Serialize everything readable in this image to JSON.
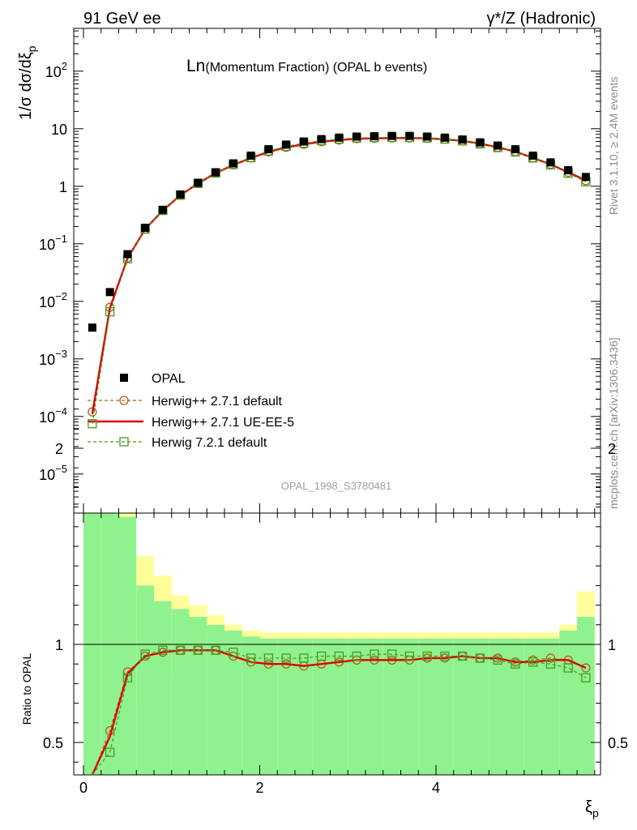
{
  "header": {
    "left": "91 GeV ee",
    "right": "γ*/Z (Hadronic)"
  },
  "side": {
    "rivet": "Rivet 3.1.10, ≥ 2.4M events",
    "mcplots": "mcplots.cern.ch [arXiv:1306.3436]"
  },
  "chart_data": [
    {
      "type": "scatter",
      "title": "Ln(Momentum Fraction) (OPAL b events)",
      "title_main": "Ln",
      "title_rest": "(Momentum Fraction) (OPAL b events)",
      "ylabel": "1/σ dσ/dξ_p",
      "yscale": "log",
      "ylim": [
        3e-06,
        600
      ],
      "xlim": [
        -0.2,
        5.9
      ],
      "yticks": [
        {
          "v": 1e-05,
          "b": "10",
          "e": "−5"
        },
        {
          "v": 0.0001,
          "b": "10",
          "e": "−4"
        },
        {
          "v": 0.001,
          "b": "10",
          "e": "−3"
        },
        {
          "v": 0.01,
          "b": "10",
          "e": "−2"
        },
        {
          "v": 0.1,
          "b": "10",
          "e": "−1"
        },
        {
          "v": 1,
          "b": "1",
          "e": ""
        },
        {
          "v": 10,
          "b": "10",
          "e": ""
        },
        {
          "v": 100,
          "b": "10",
          "e": "2"
        }
      ],
      "refcode": "OPAL_1998_S3780481",
      "x": [
        0.1,
        0.3,
        0.5,
        0.7,
        0.9,
        1.1,
        1.3,
        1.5,
        1.7,
        1.9,
        2.1,
        2.3,
        2.5,
        2.7,
        2.9,
        3.1,
        3.3,
        3.5,
        3.7,
        3.9,
        4.1,
        4.3,
        4.5,
        4.7,
        4.9,
        5.1,
        5.3,
        5.5,
        5.7
      ],
      "series": [
        {
          "name": "OPAL",
          "marker": "square-filled",
          "color": "#000000",
          "values": [
            0.0035,
            0.0145,
            0.066,
            0.19,
            0.39,
            0.72,
            1.15,
            1.75,
            2.5,
            3.4,
            4.4,
            5.3,
            6.0,
            6.6,
            7.0,
            7.3,
            7.4,
            7.5,
            7.5,
            7.3,
            7.0,
            6.5,
            5.8,
            5.1,
            4.4,
            3.4,
            2.6,
            1.9,
            1.45
          ]
        },
        {
          "name": "Herwig++ 2.7.1 default",
          "marker": "circle-open",
          "color": "#b25f1d",
          "line": "dashed",
          "values": [
            0.00012,
            0.0079,
            0.057,
            0.18,
            0.38,
            0.7,
            1.12,
            1.7,
            2.35,
            3.1,
            3.95,
            4.75,
            5.35,
            5.95,
            6.35,
            6.7,
            6.8,
            6.9,
            6.9,
            6.8,
            6.55,
            6.15,
            5.5,
            4.75,
            4.0,
            3.1,
            2.4,
            1.75,
            1.25
          ]
        },
        {
          "name": "Herwig++ 2.7.1 UE-EE-5",
          "marker": "none",
          "color": "#e00000",
          "line": "solid",
          "values": [
            0.00011,
            0.0077,
            0.056,
            0.18,
            0.38,
            0.7,
            1.12,
            1.7,
            2.35,
            3.1,
            3.95,
            4.75,
            5.35,
            5.95,
            6.35,
            6.7,
            6.8,
            6.9,
            6.9,
            6.8,
            6.55,
            6.15,
            5.5,
            4.75,
            4.0,
            3.1,
            2.4,
            1.75,
            1.27
          ]
        },
        {
          "name": "Herwig 7.2.1 default",
          "marker": "square-open",
          "color": "#4a9a1f",
          "line": "dashed",
          "values": [
            7.5e-05,
            0.0066,
            0.055,
            0.18,
            0.38,
            0.7,
            1.12,
            1.7,
            2.4,
            3.15,
            4.1,
            4.95,
            5.6,
            6.2,
            6.6,
            6.9,
            7.0,
            7.05,
            7.05,
            6.9,
            6.6,
            6.15,
            5.45,
            4.7,
            3.95,
            3.1,
            2.35,
            1.68,
            1.2
          ]
        }
      ],
      "legend_position": "lower-left"
    },
    {
      "type": "line",
      "ylabel": "Ratio to OPAL",
      "xlabel": "ξ_p",
      "ylim": [
        0.35,
        2.35
      ],
      "xlim": [
        -0.2,
        5.9
      ],
      "yticks": [
        0.5,
        1,
        2
      ],
      "xticks": [
        0,
        2,
        4
      ],
      "bins": [
        {
          "lo": 0.0,
          "hi": 0.2,
          "g": [
            0.0,
            1.85
          ],
          "y": [
            0.0,
            2.35
          ]
        },
        {
          "lo": 0.2,
          "hi": 0.4,
          "g": [
            0.0,
            1.8
          ],
          "y": [
            0.0,
            2.3
          ]
        },
        {
          "lo": 0.4,
          "hi": 0.6,
          "g": [
            0.0,
            1.65
          ],
          "y": [
            0.0,
            1.9
          ]
        },
        {
          "lo": 0.6,
          "hi": 0.8,
          "g": [
            0.0,
            1.3
          ],
          "y": [
            0.67,
            1.45
          ]
        },
        {
          "lo": 0.8,
          "hi": 1.0,
          "g": [
            0.0,
            1.22
          ],
          "y": [
            0.8,
            1.35
          ]
        },
        {
          "lo": 1.0,
          "hi": 1.2,
          "g": [
            0.0,
            1.18
          ],
          "y": [
            0.86,
            1.25
          ]
        },
        {
          "lo": 1.2,
          "hi": 1.4,
          "g": [
            0.0,
            1.14
          ],
          "y": [
            0.9,
            1.2
          ]
        },
        {
          "lo": 1.4,
          "hi": 1.6,
          "g": [
            0.0,
            1.1
          ],
          "y": [
            0.91,
            1.15
          ]
        },
        {
          "lo": 1.6,
          "hi": 1.8,
          "g": [
            0.0,
            1.07
          ],
          "y": [
            0.93,
            1.1
          ]
        },
        {
          "lo": 1.8,
          "hi": 2.0,
          "g": [
            0.0,
            1.04
          ],
          "y": [
            0.95,
            1.07
          ]
        },
        {
          "lo": 2.0,
          "hi": 2.2,
          "g": [
            0.0,
            1.03
          ],
          "y": [
            0.96,
            1.06
          ]
        },
        {
          "lo": 2.2,
          "hi": 2.4,
          "g": [
            0.0,
            1.03
          ],
          "y": [
            0.96,
            1.06
          ]
        },
        {
          "lo": 2.4,
          "hi": 2.6,
          "g": [
            0.0,
            1.03
          ],
          "y": [
            0.96,
            1.06
          ]
        },
        {
          "lo": 2.6,
          "hi": 2.8,
          "g": [
            0.0,
            1.03
          ],
          "y": [
            0.96,
            1.06
          ]
        },
        {
          "lo": 2.8,
          "hi": 3.0,
          "g": [
            0.0,
            1.03
          ],
          "y": [
            0.96,
            1.06
          ]
        },
        {
          "lo": 3.0,
          "hi": 3.2,
          "g": [
            0.0,
            1.03
          ],
          "y": [
            0.96,
            1.06
          ]
        },
        {
          "lo": 3.2,
          "hi": 3.4,
          "g": [
            0.0,
            1.03
          ],
          "y": [
            0.96,
            1.06
          ]
        },
        {
          "lo": 3.4,
          "hi": 3.6,
          "g": [
            0.0,
            1.03
          ],
          "y": [
            0.96,
            1.06
          ]
        },
        {
          "lo": 3.6,
          "hi": 3.8,
          "g": [
            0.0,
            1.03
          ],
          "y": [
            0.96,
            1.06
          ]
        },
        {
          "lo": 3.8,
          "hi": 4.0,
          "g": [
            0.0,
            1.03
          ],
          "y": [
            0.96,
            1.06
          ]
        },
        {
          "lo": 4.0,
          "hi": 4.2,
          "g": [
            0.0,
            1.03
          ],
          "y": [
            0.96,
            1.06
          ]
        },
        {
          "lo": 4.2,
          "hi": 4.4,
          "g": [
            0.0,
            1.03
          ],
          "y": [
            0.96,
            1.06
          ]
        },
        {
          "lo": 4.4,
          "hi": 4.6,
          "g": [
            0.0,
            1.03
          ],
          "y": [
            0.96,
            1.06
          ]
        },
        {
          "lo": 4.6,
          "hi": 4.8,
          "g": [
            0.0,
            1.03
          ],
          "y": [
            0.96,
            1.06
          ]
        },
        {
          "lo": 4.8,
          "hi": 5.0,
          "g": [
            0.0,
            1.03
          ],
          "y": [
            0.96,
            1.06
          ]
        },
        {
          "lo": 5.0,
          "hi": 5.2,
          "g": [
            0.0,
            1.03
          ],
          "y": [
            0.96,
            1.06
          ]
        },
        {
          "lo": 5.2,
          "hi": 5.4,
          "g": [
            0.0,
            1.03
          ],
          "y": [
            0.96,
            1.06
          ]
        },
        {
          "lo": 5.4,
          "hi": 5.6,
          "g": [
            0.0,
            1.07
          ],
          "y": [
            0.92,
            1.1
          ]
        },
        {
          "lo": 5.6,
          "hi": 5.8,
          "g": [
            0.0,
            1.14
          ],
          "y": [
            0.8,
            1.27
          ]
        }
      ],
      "band_colors": {
        "inner": "#8ff28f",
        "outer": "#ffff99"
      },
      "x": [
        0.1,
        0.3,
        0.5,
        0.7,
        0.9,
        1.1,
        1.3,
        1.5,
        1.7,
        1.9,
        2.1,
        2.3,
        2.5,
        2.7,
        2.9,
        3.1,
        3.3,
        3.5,
        3.7,
        3.9,
        4.1,
        4.3,
        4.5,
        4.7,
        4.9,
        5.1,
        5.3,
        5.5,
        5.7
      ],
      "series": [
        {
          "name": "Herwig++ 2.7.1 default",
          "marker": "circle-open",
          "color": "#b25f1d",
          "line": "dashed",
          "values": [
            0.03,
            0.56,
            0.86,
            0.94,
            0.96,
            0.97,
            0.97,
            0.97,
            0.94,
            0.91,
            0.9,
            0.9,
            0.89,
            0.9,
            0.91,
            0.92,
            0.92,
            0.92,
            0.92,
            0.93,
            0.93,
            0.94,
            0.93,
            0.93,
            0.91,
            0.92,
            0.93,
            0.92,
            0.88
          ]
        },
        {
          "name": "Herwig++ 2.7.1 UE-EE-5",
          "marker": "none",
          "color": "#e00000",
          "line": "solid",
          "values": [
            0.03,
            0.53,
            0.85,
            0.94,
            0.96,
            0.97,
            0.97,
            0.97,
            0.94,
            0.91,
            0.9,
            0.9,
            0.89,
            0.9,
            0.91,
            0.92,
            0.92,
            0.92,
            0.92,
            0.93,
            0.93,
            0.94,
            0.93,
            0.93,
            0.91,
            0.91,
            0.92,
            0.92,
            0.88
          ]
        },
        {
          "name": "Herwig 7.2.1 default",
          "marker": "square-open",
          "color": "#4a9a1f",
          "line": "dashed",
          "values": [
            0.02,
            0.45,
            0.83,
            0.95,
            0.97,
            0.97,
            0.97,
            0.97,
            0.96,
            0.93,
            0.93,
            0.93,
            0.93,
            0.94,
            0.94,
            0.94,
            0.95,
            0.95,
            0.94,
            0.94,
            0.94,
            0.94,
            0.93,
            0.92,
            0.9,
            0.91,
            0.9,
            0.88,
            0.83
          ]
        }
      ]
    }
  ]
}
